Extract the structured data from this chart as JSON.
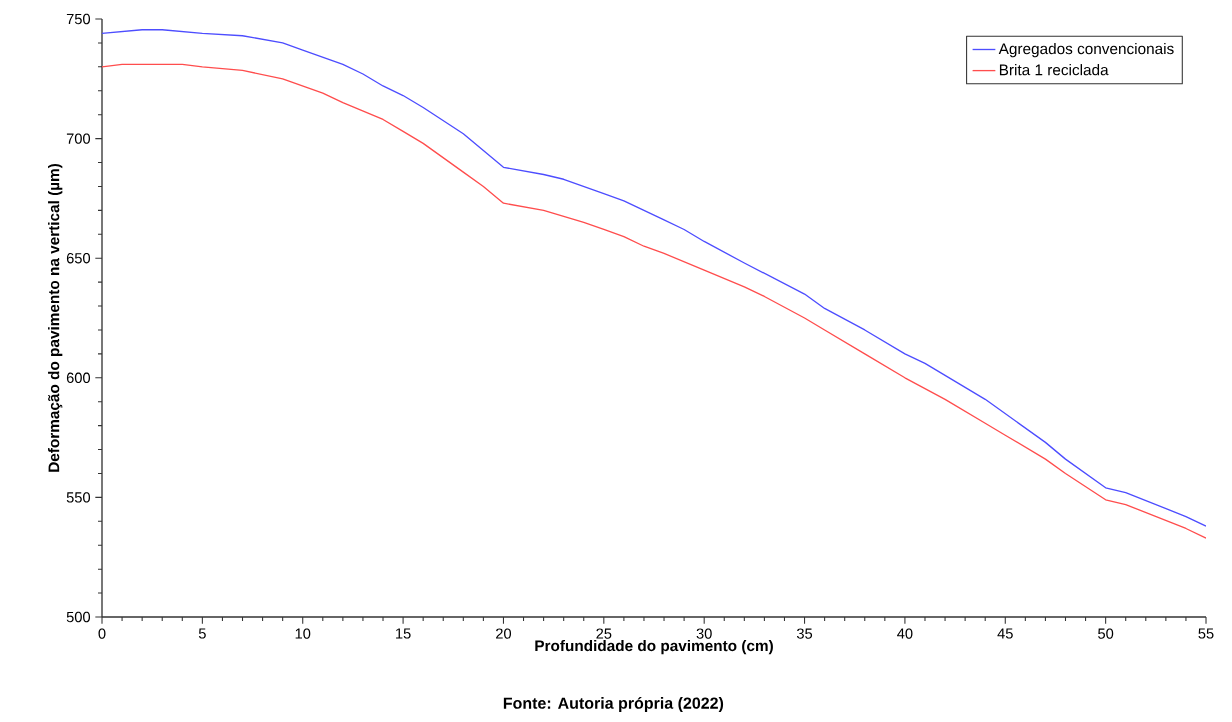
{
  "chart_data": {
    "type": "line",
    "xlabel": "Profundidade do pavimento (cm)",
    "ylabel": "Deformação do pavimento na vertical (µm)",
    "annotations": [
      "Fonte: Autoria própria (2022)"
    ],
    "series": [
      {
        "name": "Agregados convencionais",
        "color": "#4d4dff",
        "x": [
          0,
          2,
          3,
          5,
          7,
          9,
          10,
          12,
          13,
          14,
          15,
          16,
          18,
          19,
          20,
          22,
          23,
          25,
          26,
          28,
          29,
          30,
          32,
          35,
          36,
          38,
          40,
          41,
          43,
          44,
          47,
          48,
          50,
          51,
          54,
          55
        ],
        "values": [
          744,
          745.5,
          745.5,
          744,
          743,
          740,
          737,
          731,
          727,
          722,
          718,
          713,
          702,
          695,
          688,
          685,
          683,
          677,
          674,
          666,
          662,
          657,
          648,
          635,
          629,
          620,
          610,
          606,
          596,
          591,
          573,
          566,
          554,
          552,
          542,
          538
        ]
      },
      {
        "name": "Brita 1 reciclada",
        "color": "#ff4d4d",
        "x": [
          0,
          1,
          4,
          5,
          7,
          9,
          11,
          12,
          14,
          15,
          16,
          18,
          19,
          20,
          22,
          24,
          25,
          26,
          27,
          28,
          30,
          32,
          33,
          35,
          36,
          38,
          40,
          42,
          44,
          45,
          47,
          48,
          50,
          51,
          54,
          55
        ],
        "values": [
          730,
          731,
          731,
          730,
          728.5,
          725,
          719,
          715,
          708,
          703,
          698,
          686,
          680,
          673,
          670,
          665,
          662,
          659,
          655,
          652,
          645,
          638,
          634,
          625,
          620,
          610,
          600,
          591,
          581,
          576,
          566,
          560,
          549,
          547,
          537,
          533
        ]
      }
    ],
    "xlim": [
      0,
      55
    ],
    "xticks": [
      0,
      5,
      10,
      15,
      20,
      25,
      30,
      35,
      40,
      45,
      50,
      55
    ],
    "ylim": [
      500,
      750
    ],
    "yticks": [
      500,
      550,
      600,
      650,
      700,
      750
    ],
    "legend": "top right",
    "grid": false,
    "marker": "none",
    "line_style": "solid"
  }
}
